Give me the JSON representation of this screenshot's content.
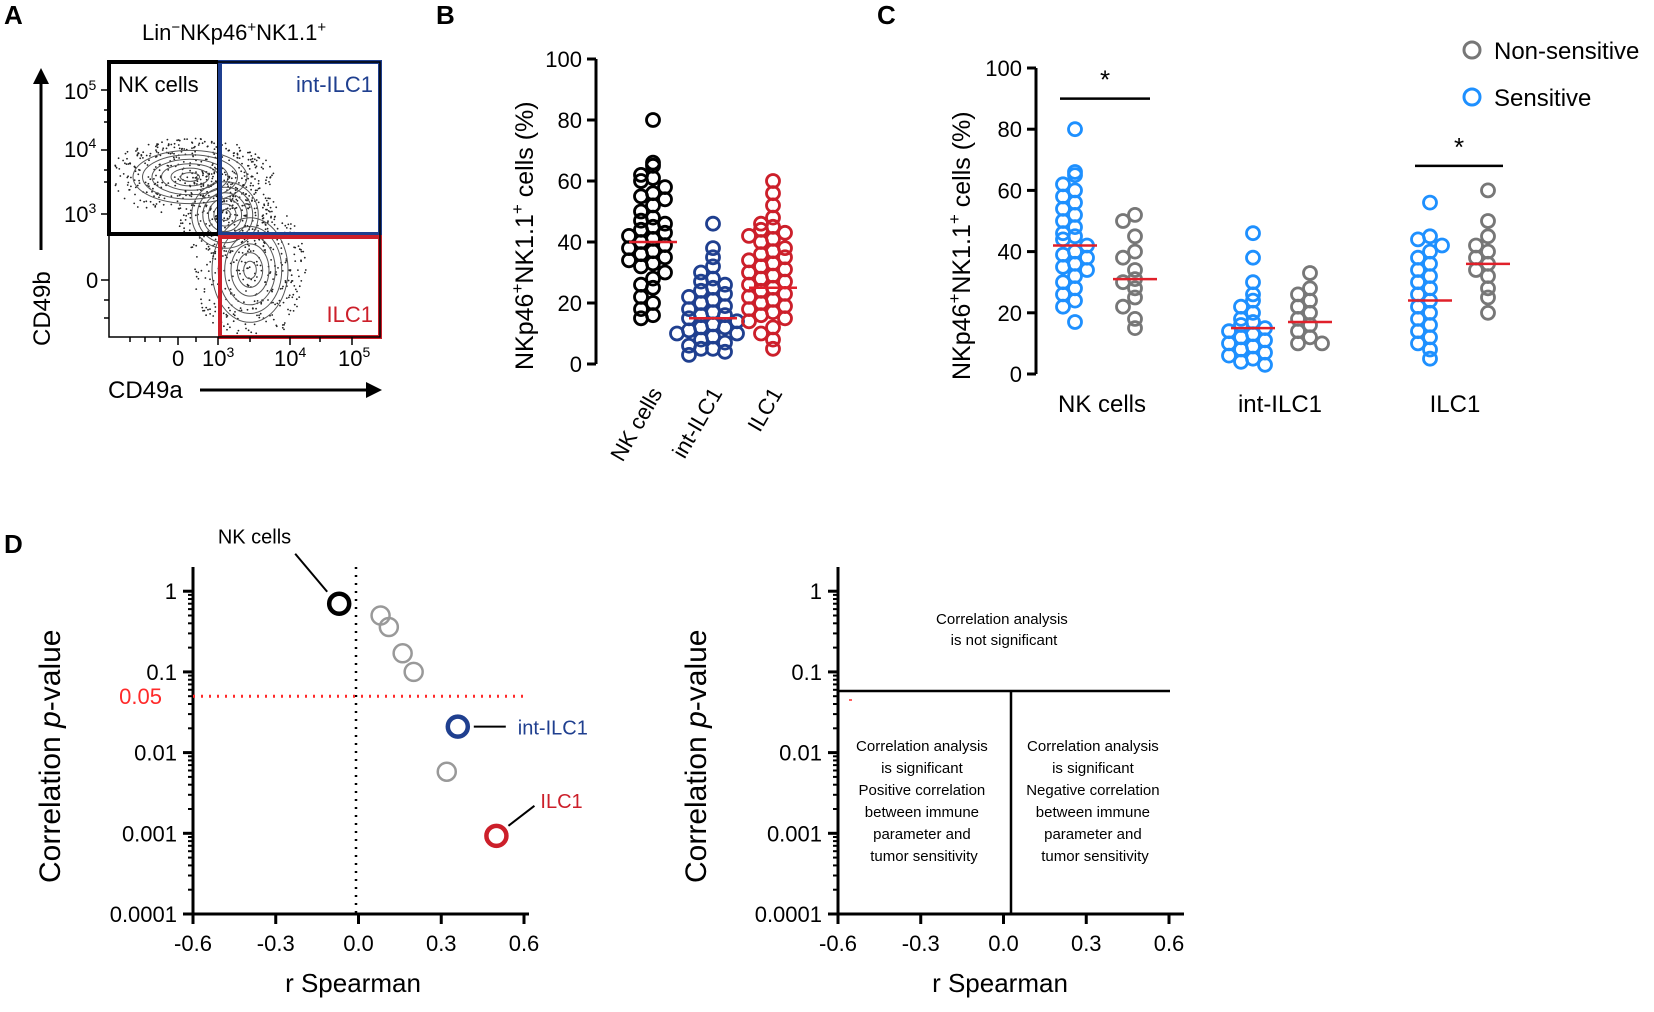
{
  "panel_letters": {
    "a": "A",
    "b": "B",
    "c": "C",
    "d": "D"
  },
  "colors": {
    "black": "#000000",
    "blue_dark": "#1f3f8f",
    "red": "#cc1f2a",
    "blue_light": "#1e90ff",
    "gray": "#777777",
    "mean_line": "#e0202a",
    "cutoff": "#ff2a2a"
  },
  "chart_data": [
    {
      "id": "A",
      "type": "flow-cytometry-contour",
      "title_parts": {
        "lin": "Lin",
        "neg": "−",
        "nk": "NKp46",
        "pos1": "+",
        "nk11": "NK1.1",
        "pos2": "+"
      },
      "xlabel": "CD49a",
      "ylabel": "CD49b",
      "x_ticks": [
        "0",
        "10",
        "10",
        "10"
      ],
      "x_exps": [
        "",
        "3",
        "4",
        "5"
      ],
      "y_ticks": [
        "10",
        "10",
        "10",
        "0"
      ],
      "y_exps": [
        "5",
        "4",
        "3",
        ""
      ],
      "gates": [
        {
          "label": "NK cells",
          "color": "#000000"
        },
        {
          "label": "int-ILC1",
          "color": "#1f3f8f"
        },
        {
          "label": "ILC1",
          "color": "#cc1f2a"
        }
      ]
    },
    {
      "id": "B",
      "type": "scatter-dot",
      "ylabel_parts": {
        "a": "NKp46",
        "b": "+",
        "c": "NK1.1",
        "d": "+",
        "e": " cells (%)"
      },
      "ylim": [
        0,
        100
      ],
      "yticks": [
        0,
        20,
        40,
        60,
        80,
        100
      ],
      "categories": [
        "NK cells",
        "int-ILC1",
        "ILC1"
      ],
      "series": [
        {
          "name": "NK cells",
          "color": "#000000",
          "mean": 40,
          "values": [
            80,
            66,
            65,
            62,
            61,
            60,
            58,
            56,
            55,
            54,
            52,
            50,
            48,
            47,
            46,
            45,
            44,
            43,
            42,
            41,
            40,
            39,
            38,
            37,
            36,
            35,
            34,
            33,
            32,
            30,
            28,
            26,
            25,
            22,
            20,
            18,
            16,
            15
          ]
        },
        {
          "name": "int-ILC1",
          "color": "#1f3f8f",
          "mean": 15,
          "values": [
            46,
            38,
            35,
            32,
            30,
            28,
            27,
            26,
            25,
            24,
            23,
            22,
            21,
            20,
            19,
            18,
            17,
            16,
            16,
            15,
            14,
            13,
            12,
            12,
            11,
            10,
            10,
            9,
            8,
            7,
            6,
            5,
            5,
            4,
            3
          ]
        },
        {
          "name": "ILC1",
          "color": "#cc1f2a",
          "mean": 25,
          "values": [
            60,
            56,
            52,
            48,
            46,
            45,
            44,
            43,
            42,
            41,
            40,
            38,
            37,
            36,
            35,
            34,
            33,
            32,
            31,
            30,
            29,
            28,
            27,
            26,
            25,
            24,
            23,
            22,
            21,
            20,
            19,
            18,
            17,
            16,
            15,
            14,
            12,
            10,
            8,
            5
          ]
        }
      ]
    },
    {
      "id": "C",
      "type": "scatter-dot-grouped",
      "ylabel_parts": {
        "a": "NKp46",
        "b": "+",
        "c": "NK1.1",
        "d": "+",
        "e": " cells (%)"
      },
      "ylim": [
        0,
        100
      ],
      "yticks": [
        0,
        20,
        40,
        60,
        80,
        100
      ],
      "categories": [
        "NK cells",
        "int-ILC1",
        "ILC1"
      ],
      "legend": [
        {
          "label": "Non-sensitive",
          "color": "#777777"
        },
        {
          "label": "Sensitive",
          "color": "#1e90ff"
        }
      ],
      "significance": [
        {
          "group": 0,
          "label": "*",
          "y": 90
        },
        {
          "group": 2,
          "label": "*",
          "y": 68
        }
      ],
      "groups": [
        {
          "sensitive": {
            "mean": 42,
            "values": [
              80,
              66,
              65,
              62,
              60,
              58,
              56,
              54,
              52,
              50,
              48,
              46,
              45,
              44,
              42,
              40,
              39,
              38,
              36,
              35,
              34,
              32,
              30,
              28,
              26,
              24,
              22,
              17
            ]
          },
          "nonsensitive": {
            "mean": 31,
            "values": [
              52,
              50,
              45,
              40,
              38,
              34,
              31,
              30,
              28,
              25,
              22,
              18,
              15
            ]
          }
        },
        {
          "sensitive": {
            "mean": 15,
            "values": [
              46,
              38,
              30,
              26,
              24,
              22,
              20,
              18,
              17,
              16,
              15,
              14,
              13,
              12,
              11,
              10,
              9,
              8,
              7,
              6,
              5,
              4,
              3
            ]
          },
          "nonsensitive": {
            "mean": 17,
            "values": [
              33,
              28,
              26,
              24,
              22,
              20,
              18,
              16,
              14,
              12,
              10,
              10
            ]
          }
        },
        {
          "sensitive": {
            "mean": 24,
            "values": [
              56,
              45,
              44,
              42,
              40,
              38,
              36,
              34,
              32,
              30,
              28,
              26,
              24,
              22,
              20,
              18,
              16,
              14,
              12,
              10,
              8,
              5
            ]
          },
          "nonsensitive": {
            "mean": 36,
            "values": [
              60,
              50,
              45,
              42,
              40,
              38,
              36,
              34,
              32,
              28,
              25,
              20
            ]
          }
        }
      ]
    },
    {
      "id": "D-left",
      "type": "scatter",
      "xlabel": "r Spearman",
      "ylabel_parts": {
        "a": "Correlation ",
        "b": "p",
        "c": "-value"
      },
      "xlim": [
        -0.6,
        0.6
      ],
      "xticks": [
        "-0.6",
        "-0.3",
        "0.0",
        "0.3",
        "0.6"
      ],
      "ylim_log10": [
        -4,
        0.3
      ],
      "yticks": [
        "1",
        "0.1",
        "0.01",
        "0.001",
        "0.0001"
      ],
      "cutoff": {
        "label": "0.05",
        "value": 0.05
      },
      "points": [
        {
          "label": "NK cells",
          "r": -0.07,
          "p": 0.7,
          "color": "#000000",
          "highlight": true
        },
        {
          "label": "",
          "r": 0.08,
          "p": 0.5,
          "color": "#999999",
          "highlight": false
        },
        {
          "label": "",
          "r": 0.11,
          "p": 0.36,
          "color": "#999999",
          "highlight": false
        },
        {
          "label": "",
          "r": 0.16,
          "p": 0.17,
          "color": "#999999",
          "highlight": false
        },
        {
          "label": "",
          "r": 0.2,
          "p": 0.1,
          "color": "#999999",
          "highlight": false
        },
        {
          "label": "int-ILC1",
          "r": 0.36,
          "p": 0.021,
          "color": "#1f3f8f",
          "highlight": true
        },
        {
          "label": "",
          "r": 0.32,
          "p": 0.0058,
          "color": "#999999",
          "highlight": false
        },
        {
          "label": "ILC1",
          "r": 0.5,
          "p": 0.00093,
          "color": "#cc1f2a",
          "highlight": true
        }
      ]
    },
    {
      "id": "D-right",
      "type": "schematic",
      "xlabel": "r Spearman",
      "ylabel_parts": {
        "a": "Correlation ",
        "b": "p",
        "c": "-value"
      },
      "xticks": [
        "-0.6",
        "-0.3",
        "0.0",
        "0.3",
        "0.6"
      ],
      "yticks": [
        "1",
        "0.1",
        "0.01",
        "0.001",
        "0.0001"
      ],
      "regions": {
        "top": [
          "Correlation analysis",
          "is not significant"
        ],
        "left": [
          "Correlation analysis",
          "is significant",
          "Positive correlation",
          "between immune",
          "parameter and",
          "tumor sensitivity"
        ],
        "right": [
          "Correlation analysis",
          "is significant",
          "Negative correlation",
          "between immune",
          "parameter and",
          "tumor sensitivity"
        ]
      }
    }
  ]
}
